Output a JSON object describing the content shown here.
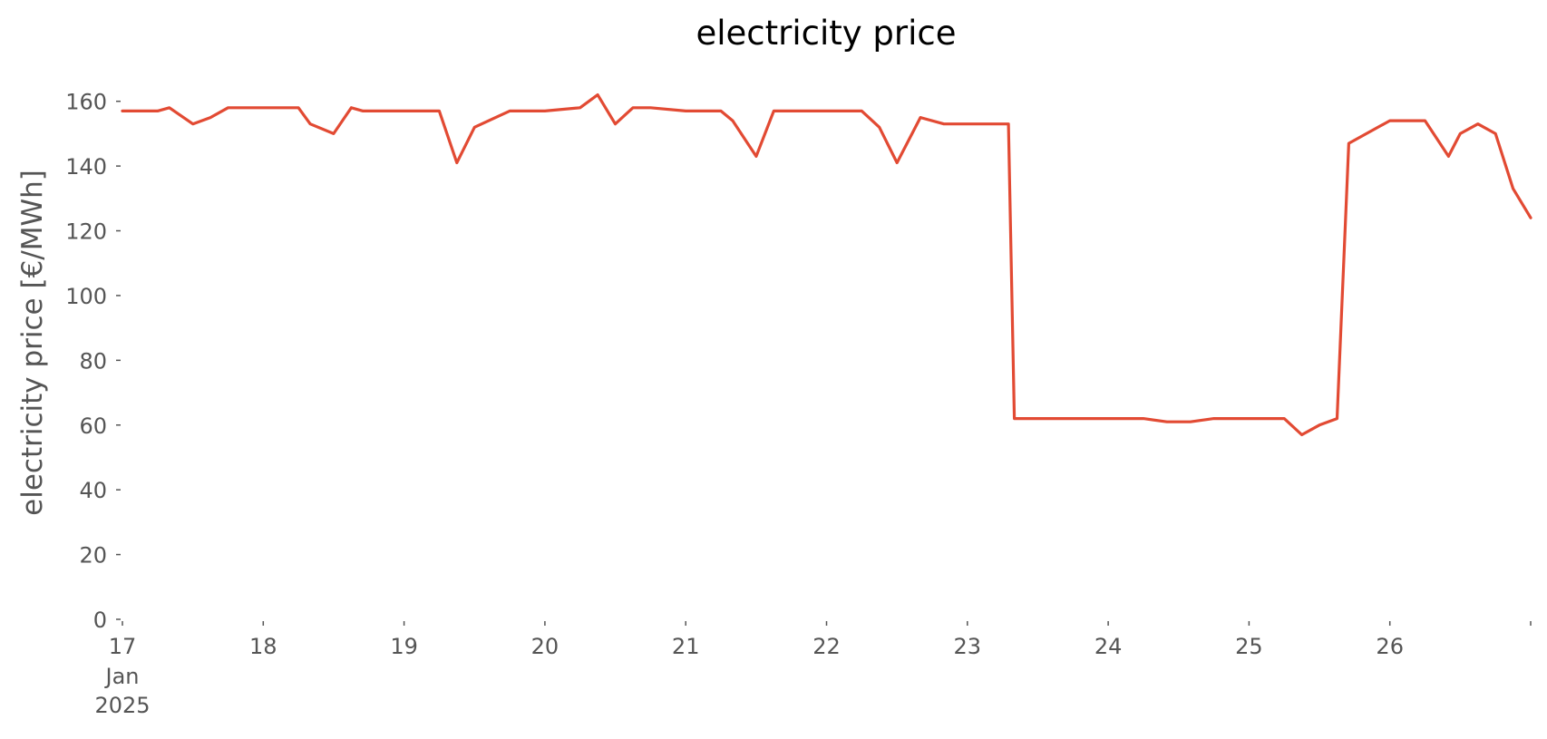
{
  "chart_data": {
    "type": "line",
    "title": "electricity price",
    "xlabel": "",
    "ylabel": "electricity price [€/MWh]",
    "x_tick_labels": [
      "17",
      "18",
      "19",
      "20",
      "21",
      "22",
      "23",
      "24",
      "25",
      "26"
    ],
    "x_tick_sublabels": [
      "Jan",
      "2025"
    ],
    "y_tick_labels": [
      "0",
      "20",
      "40",
      "60",
      "80",
      "100",
      "120",
      "140",
      "160"
    ],
    "xlim": [
      "2025-01-17 00:00",
      "2025-01-27 00:00"
    ],
    "ylim": [
      0,
      170
    ],
    "grid": false,
    "color": "#E24A33",
    "series": [
      {
        "x": [
          "2025-01-17 00:00",
          "2025-01-17 06:00",
          "2025-01-17 08:00",
          "2025-01-17 12:00",
          "2025-01-17 15:00",
          "2025-01-17 18:00",
          "2025-01-18 00:00",
          "2025-01-18 06:00",
          "2025-01-18 08:00",
          "2025-01-18 12:00",
          "2025-01-18 15:00",
          "2025-01-18 17:00",
          "2025-01-18 21:00",
          "2025-01-19 00:00",
          "2025-01-19 06:00",
          "2025-01-19 09:00",
          "2025-01-19 12:00",
          "2025-01-19 18:00",
          "2025-01-20 00:00",
          "2025-01-20 06:00",
          "2025-01-20 09:00",
          "2025-01-20 12:00",
          "2025-01-20 15:00",
          "2025-01-20 18:00",
          "2025-01-21 00:00",
          "2025-01-21 06:00",
          "2025-01-21 08:00",
          "2025-01-21 12:00",
          "2025-01-21 15:00",
          "2025-01-21 18:00",
          "2025-01-22 00:00",
          "2025-01-22 06:00",
          "2025-01-22 09:00",
          "2025-01-22 12:00",
          "2025-01-22 16:00",
          "2025-01-22 20:00",
          "2025-01-23 00:00",
          "2025-01-23 07:00",
          "2025-01-23 08:00",
          "2025-01-23 12:00",
          "2025-01-23 16:00",
          "2025-01-23 20:00",
          "2025-01-24 00:00",
          "2025-01-24 06:00",
          "2025-01-24 10:00",
          "2025-01-24 14:00",
          "2025-01-24 18:00",
          "2025-01-25 00:00",
          "2025-01-25 06:00",
          "2025-01-25 09:00",
          "2025-01-25 12:00",
          "2025-01-25 15:00",
          "2025-01-25 17:00",
          "2025-01-26 00:00",
          "2025-01-26 06:00",
          "2025-01-26 10:00",
          "2025-01-26 12:00",
          "2025-01-26 15:00",
          "2025-01-26 18:00",
          "2025-01-26 21:00",
          "2025-01-27 00:00"
        ],
        "y": [
          157,
          157,
          158,
          153,
          155,
          158,
          158,
          158,
          153,
          150,
          158,
          157,
          157,
          157,
          157,
          141,
          152,
          157,
          157,
          158,
          162,
          153,
          158,
          158,
          157,
          157,
          154,
          143,
          157,
          157,
          157,
          157,
          152,
          141,
          155,
          153,
          153,
          153,
          62,
          62,
          62,
          62,
          62,
          62,
          61,
          61,
          62,
          62,
          62,
          57,
          60,
          62,
          147,
          154,
          154,
          143,
          150,
          153,
          150,
          133,
          124
        ]
      }
    ]
  }
}
